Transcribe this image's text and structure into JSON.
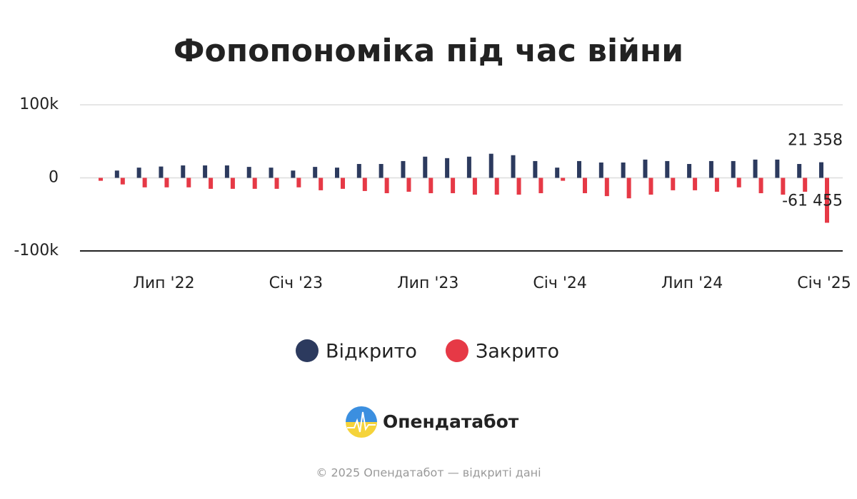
{
  "chart_data": {
    "type": "bar",
    "title": "Фопопономіка під час війни",
    "categories": [
      null,
      null,
      null,
      "Лип '22",
      null,
      null,
      null,
      null,
      null,
      "Січ '23",
      null,
      null,
      null,
      null,
      null,
      "Лип '23",
      null,
      null,
      null,
      null,
      null,
      "Січ '24",
      null,
      null,
      null,
      null,
      null,
      "Лип '24",
      null,
      null,
      null,
      null,
      null,
      "Січ '25"
    ],
    "series": [
      {
        "name": "Відкрито",
        "color": "#2c3a5e",
        "values": [
          0,
          10000,
          14000,
          15500,
          17000,
          17000,
          17000,
          15000,
          14000,
          10000,
          15000,
          14000,
          19000,
          19000,
          23000,
          29000,
          27000,
          29000,
          33000,
          31000,
          23000,
          14000,
          23000,
          21000,
          21000,
          25000,
          23000,
          19000,
          23000,
          23000,
          25000,
          25000,
          19000,
          21358
        ],
        "value_labels": [
          null,
          null,
          null,
          null,
          null,
          null,
          null,
          null,
          null,
          null,
          null,
          null,
          null,
          null,
          null,
          null,
          null,
          null,
          null,
          null,
          null,
          null,
          null,
          null,
          null,
          null,
          null,
          null,
          null,
          null,
          null,
          null,
          null,
          "21 358"
        ]
      },
      {
        "name": "Закрито",
        "color": "#e63946",
        "values": [
          -4000,
          -9000,
          -13000,
          -13000,
          -13000,
          -15000,
          -15000,
          -15000,
          -15000,
          -13000,
          -17000,
          -15000,
          -18000,
          -21000,
          -19000,
          -21000,
          -21000,
          -23000,
          -23000,
          -23000,
          -21000,
          -4000,
          -21000,
          -25000,
          -28000,
          -23000,
          -17000,
          -17000,
          -19000,
          -13000,
          -21000,
          -23000,
          -19000,
          -61455
        ],
        "value_labels": [
          null,
          null,
          null,
          null,
          null,
          null,
          null,
          null,
          null,
          null,
          null,
          null,
          null,
          null,
          null,
          null,
          null,
          null,
          null,
          null,
          null,
          null,
          null,
          null,
          null,
          null,
          null,
          null,
          null,
          null,
          null,
          null,
          null,
          "-61 455"
        ]
      }
    ],
    "ylim": [
      -100000,
      100000
    ],
    "yticks": [
      {
        "value": -100000,
        "label": "-100k"
      },
      0,
      {
        "value": 100000,
        "label": "100k"
      }
    ],
    "grid": true
  },
  "brand": "Опендатабот",
  "footer": "© 2025 Опендатабот — відкриті дані"
}
